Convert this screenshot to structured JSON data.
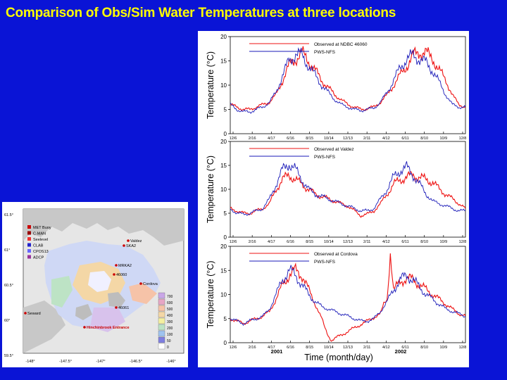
{
  "slide": {
    "title": "Comparison of Obs/Sim Water Temperatures at three locations"
  },
  "colors": {
    "background": "#0a14d6",
    "title": "#ffff00",
    "observed": "#ee1111",
    "simulated": "#1a1ab8"
  },
  "map": {
    "legend": [
      "MET Buoy",
      "C-MAN",
      "Seelevel",
      "CLAB",
      "CPOS13",
      "ADCP"
    ],
    "place_labels": [
      "Valdez",
      "Cordova",
      "Seward",
      "Hinchinbrook Entrance",
      "46060",
      "46061",
      "SKA2",
      "MRKA2"
    ],
    "lat_labels": [
      "61.5°",
      "61°",
      "60.5°",
      "60°",
      "59.5°"
    ],
    "lon_labels": [
      "-148°",
      "-147.5°",
      "-147°",
      "-146.5°",
      "-146°"
    ],
    "depth_scale": [
      "0",
      "50",
      "100",
      "200",
      "300",
      "400",
      "500",
      "600",
      "700"
    ]
  },
  "chart_data": [
    {
      "type": "line",
      "ylabel": "Temperature (°C)",
      "ylim": [
        0,
        20
      ],
      "yticks": [
        0,
        5,
        10,
        15,
        20
      ],
      "xticks": [
        "12/6",
        "2/16",
        "4/17",
        "6/16",
        "8/15",
        "10/14",
        "12/13",
        "2/11",
        "4/12",
        "6/11",
        "8/10",
        "10/9",
        "12/8"
      ],
      "series": [
        {
          "name": "Observed at NDBC 46060",
          "x": [
            0,
            10,
            20,
            30,
            40,
            50,
            60,
            70,
            80,
            90,
            100,
            110,
            120,
            130,
            140,
            150,
            160,
            170,
            180,
            190,
            200,
            210,
            220,
            230,
            240,
            250,
            260,
            270,
            280,
            290,
            300,
            310,
            320,
            330,
            340,
            350,
            360
          ],
          "y": [
            6,
            5.5,
            5,
            5,
            5.5,
            6,
            6.5,
            8,
            11,
            14,
            15.5,
            16.5,
            15,
            13,
            11,
            9.5,
            8,
            7,
            6,
            5.5,
            5,
            5.2,
            5.5,
            6.5,
            8,
            10,
            12,
            14,
            16,
            17,
            16.5,
            15.5,
            13,
            11,
            8,
            6,
            5.5
          ]
        },
        {
          "name": "PWS-NFS",
          "x": [
            0,
            10,
            20,
            30,
            40,
            50,
            60,
            70,
            80,
            90,
            100,
            110,
            120,
            130,
            140,
            150,
            160,
            170,
            180,
            190,
            200,
            210,
            220,
            230,
            240,
            250,
            260,
            270,
            280,
            290,
            300,
            310,
            320,
            330,
            340,
            350,
            360
          ],
          "y": [
            6,
            5,
            4.5,
            4.5,
            5,
            5.5,
            6.5,
            8.5,
            12,
            15,
            16.5,
            16,
            14,
            12,
            10,
            8.5,
            7,
            6,
            5.5,
            5,
            4.8,
            5,
            5.3,
            6.5,
            8.5,
            11,
            13.5,
            15.5,
            16,
            15.5,
            14.5,
            13,
            10.5,
            8,
            6,
            5.5,
            5.5
          ]
        }
      ]
    },
    {
      "type": "line",
      "ylabel": "Temperature (°C)",
      "ylim": [
        0,
        20
      ],
      "yticks": [
        0,
        5,
        10,
        15,
        20
      ],
      "xticks": [
        "12/6",
        "2/16",
        "4/17",
        "6/16",
        "8/15",
        "10/14",
        "12/13",
        "2/11",
        "4/12",
        "6/11",
        "8/10",
        "10/9",
        "12/8"
      ],
      "series": [
        {
          "name": "Observed at Valdez",
          "x": [
            0,
            10,
            20,
            30,
            40,
            50,
            60,
            70,
            80,
            90,
            100,
            110,
            120,
            130,
            140,
            150,
            160,
            170,
            180,
            190,
            200,
            210,
            220,
            230,
            240,
            250,
            260,
            270,
            280,
            290,
            300,
            310,
            320,
            330,
            340,
            350,
            360
          ],
          "y": [
            6,
            5.5,
            5,
            5,
            5.5,
            6,
            7,
            10,
            12,
            13,
            12,
            11,
            10,
            9,
            8.5,
            8,
            7.5,
            7,
            6.5,
            5.5,
            4.5,
            4.8,
            5.5,
            7,
            9,
            11,
            12,
            12.5,
            13,
            12.5,
            12,
            11.5,
            10,
            9,
            8,
            7,
            6
          ]
        },
        {
          "name": "PWS-NFS",
          "x": [
            0,
            10,
            20,
            30,
            40,
            50,
            60,
            70,
            80,
            90,
            100,
            110,
            120,
            130,
            140,
            150,
            160,
            170,
            180,
            190,
            200,
            210,
            220,
            230,
            240,
            250,
            260,
            270,
            280,
            290,
            300,
            310,
            320,
            330,
            340,
            350,
            360
          ],
          "y": [
            6,
            5,
            4.8,
            5,
            5.5,
            6,
            8,
            11,
            14,
            15.5,
            14,
            12,
            10,
            9,
            8.5,
            8,
            7.5,
            7,
            6.5,
            6,
            5.5,
            5.5,
            6,
            8,
            10,
            12.5,
            14,
            14.5,
            13,
            11,
            9,
            7.5,
            7,
            6.5,
            6,
            5.5,
            5.5
          ]
        }
      ]
    },
    {
      "type": "line",
      "ylabel": "Temperature (°C)",
      "xlabel": "Time (month/day)",
      "year_labels": [
        "2001",
        "2002"
      ],
      "ylim": [
        0,
        20
      ],
      "yticks": [
        0,
        5,
        10,
        15,
        20
      ],
      "xticks": [
        "12/6",
        "2/16",
        "4/17",
        "6/16",
        "8/15",
        "10/14",
        "12/13",
        "2/11",
        "4/12",
        "6/11",
        "8/10",
        "10/9",
        "12/8"
      ],
      "series": [
        {
          "name": "Observed at Cordova",
          "x": [
            0,
            10,
            20,
            30,
            40,
            50,
            60,
            70,
            80,
            90,
            100,
            110,
            120,
            130,
            140,
            145,
            150,
            155,
            230,
            235,
            240,
            245,
            250,
            260,
            270,
            280,
            290,
            300,
            310,
            320,
            330,
            340,
            350,
            360
          ],
          "y": [
            5,
            4.5,
            4,
            4.5,
            5,
            5.5,
            6.5,
            9,
            12,
            14,
            15,
            14,
            11,
            8,
            5,
            3,
            1.5,
            0.5,
            6,
            8,
            9,
            19,
            11,
            12.5,
            13.5,
            13,
            12,
            11,
            10,
            9,
            8,
            7,
            6,
            5.5
          ]
        },
        {
          "name": "PWS-NFS",
          "x": [
            0,
            10,
            20,
            30,
            40,
            50,
            60,
            70,
            80,
            90,
            100,
            110,
            120,
            130,
            140,
            150,
            160,
            170,
            180,
            190,
            200,
            210,
            220,
            230,
            240,
            250,
            260,
            270,
            280,
            290,
            300,
            310,
            320,
            330,
            340,
            350,
            360
          ],
          "y": [
            5,
            4.5,
            4,
            4.5,
            5,
            5.5,
            7,
            10,
            13,
            15,
            14,
            12,
            10,
            8.5,
            7.5,
            7,
            6.5,
            6,
            5.5,
            5,
            4.5,
            4.5,
            5,
            6.5,
            8.5,
            11,
            13,
            14,
            13,
            11.5,
            10,
            9,
            8,
            7,
            6.5,
            6,
            5.5
          ]
        }
      ]
    }
  ]
}
